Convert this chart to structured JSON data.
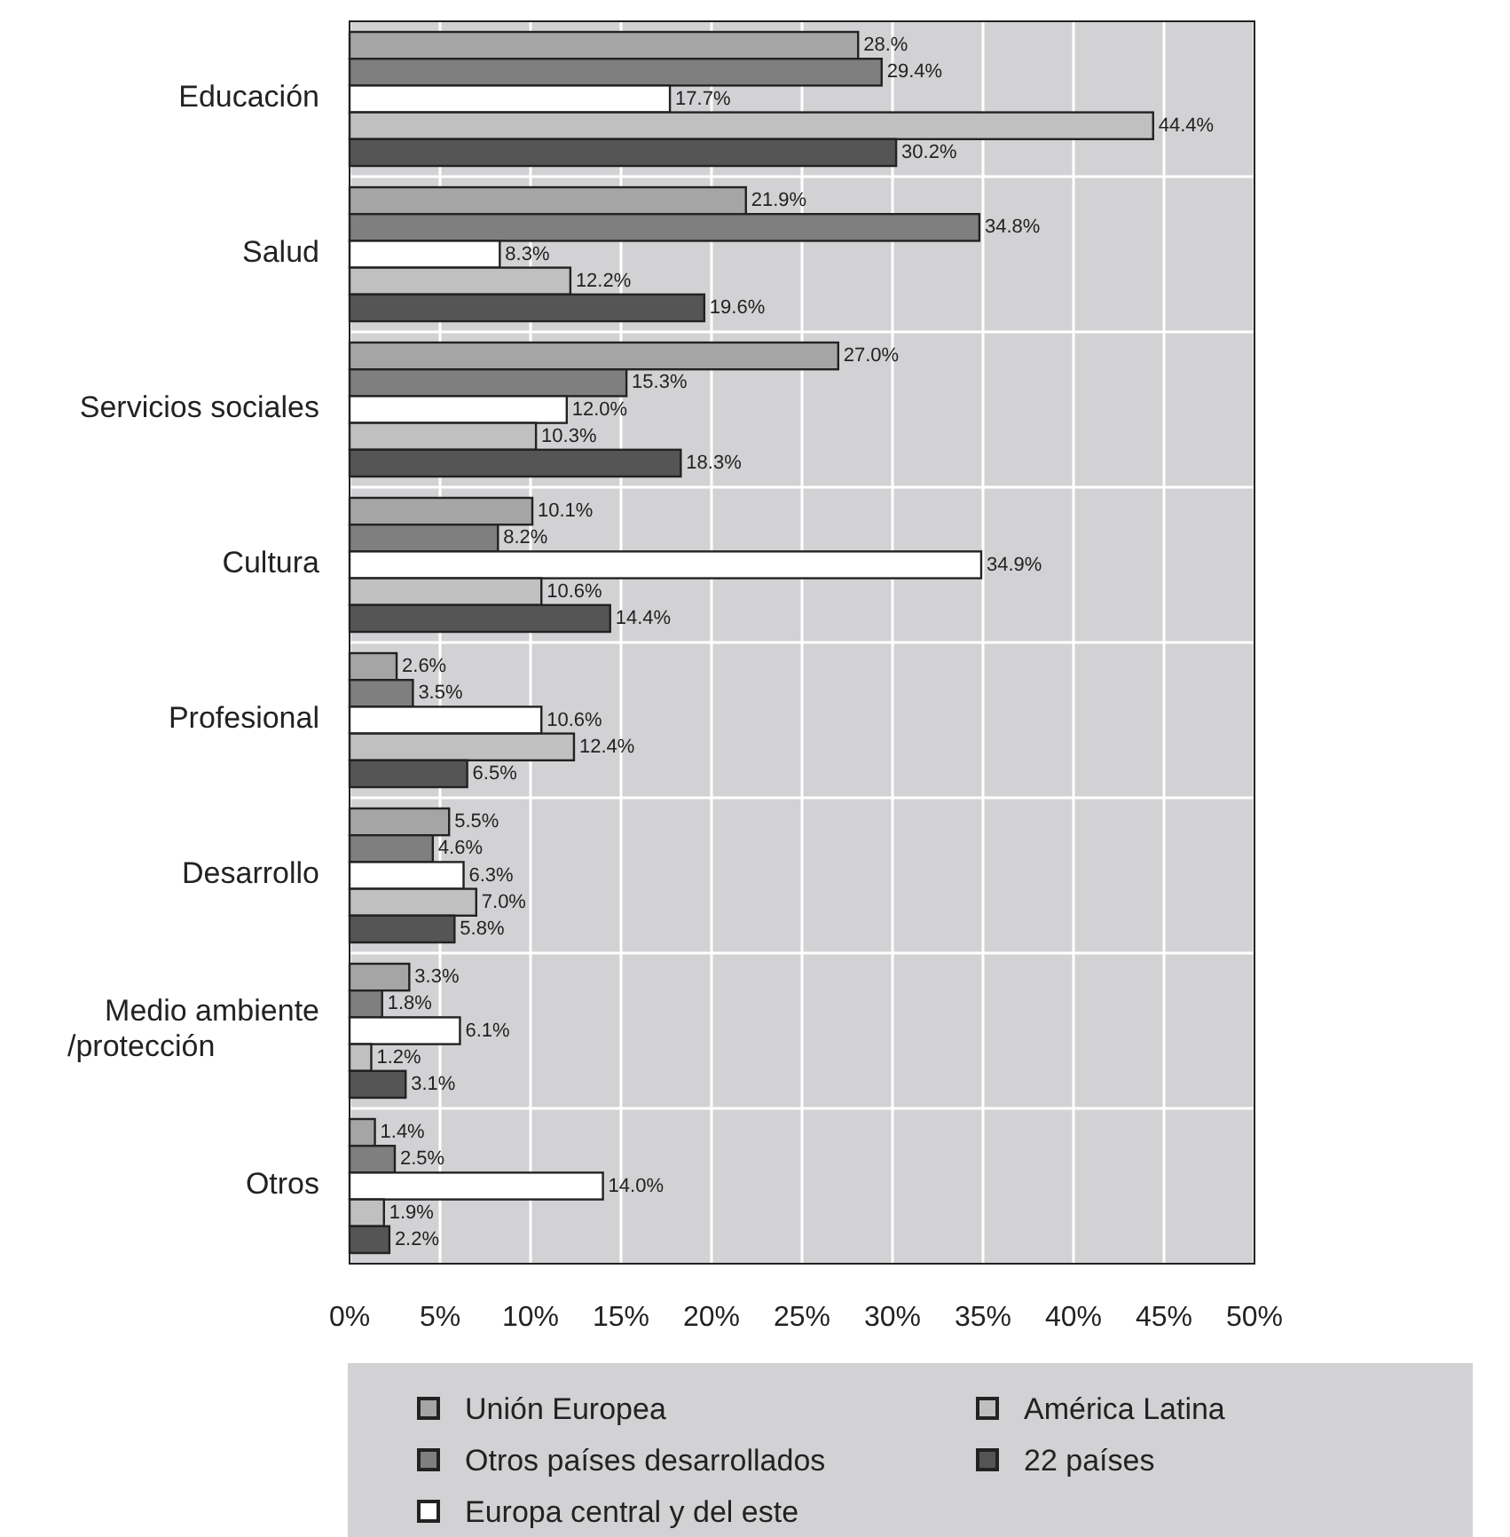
{
  "chart_data": {
    "type": "bar",
    "orientation": "horizontal",
    "categories": [
      "Educación",
      "Salud",
      "Servicios sociales",
      "Cultura",
      "Profesional",
      "Desarrollo",
      "Medio ambiente\n/protección",
      "Otros"
    ],
    "series": [
      {
        "name": "Unión Europea",
        "color": "#a5a5a5",
        "values": [
          28.1,
          21.9,
          27.0,
          10.1,
          2.6,
          5.5,
          3.3,
          1.4
        ],
        "value_labels": [
          "28.%",
          "21.9%",
          "27.0%",
          "10.1%",
          "2.6%",
          "5.5%",
          "3.3%",
          "1.4%"
        ]
      },
      {
        "name": "Otros países desarrollados",
        "color": "#7f7f7f",
        "values": [
          29.4,
          34.8,
          15.3,
          8.2,
          3.5,
          4.6,
          1.8,
          2.5
        ],
        "value_labels": [
          "29.4%",
          "34.8%",
          "15.3%",
          "8.2%",
          "3.5%",
          "4.6%",
          "1.8%",
          "2.5%"
        ]
      },
      {
        "name": "Europa central y del este",
        "color": "#ffffff",
        "values": [
          17.7,
          8.3,
          12.0,
          34.9,
          10.6,
          6.3,
          6.1,
          14.0
        ],
        "value_labels": [
          "17.7%",
          "8.3%",
          "12.0%",
          "34.9%",
          "10.6%",
          "6.3%",
          "6.1%",
          "14.0%"
        ]
      },
      {
        "name": "América Latina",
        "color": "#c0c0c0",
        "values": [
          44.4,
          12.2,
          10.3,
          10.6,
          12.4,
          7.0,
          1.2,
          1.9
        ],
        "value_labels": [
          "44.4%",
          "12.2%",
          "10.3%",
          "10.6%",
          "12.4%",
          "7.0%",
          "1.2%",
          "1.9%"
        ]
      },
      {
        "name": "22 países",
        "color": "#555555",
        "values": [
          30.2,
          19.6,
          18.3,
          14.4,
          6.5,
          5.8,
          3.1,
          2.2
        ],
        "value_labels": [
          "30.2%",
          "19.6%",
          "18.3%",
          "14.4%",
          "6.5%",
          "5.8%",
          "3.1%",
          "2.2%"
        ]
      }
    ],
    "xlim": [
      0,
      50
    ],
    "xticks": [
      {
        "value": 0,
        "label": "0%"
      },
      {
        "value": 5,
        "label": "5%"
      },
      {
        "value": 10,
        "label": "10%"
      },
      {
        "value": 15,
        "label": "15%"
      },
      {
        "value": 20,
        "label": "20%"
      },
      {
        "value": 25,
        "label": "25%"
      },
      {
        "value": 30,
        "label": "30%"
      },
      {
        "value": 35,
        "label": "35%"
      },
      {
        "value": 40,
        "label": "40%"
      },
      {
        "value": 45,
        "label": "45%"
      },
      {
        "value": 50,
        "label": "50%"
      }
    ],
    "grid": "x",
    "legend": "bottom"
  }
}
